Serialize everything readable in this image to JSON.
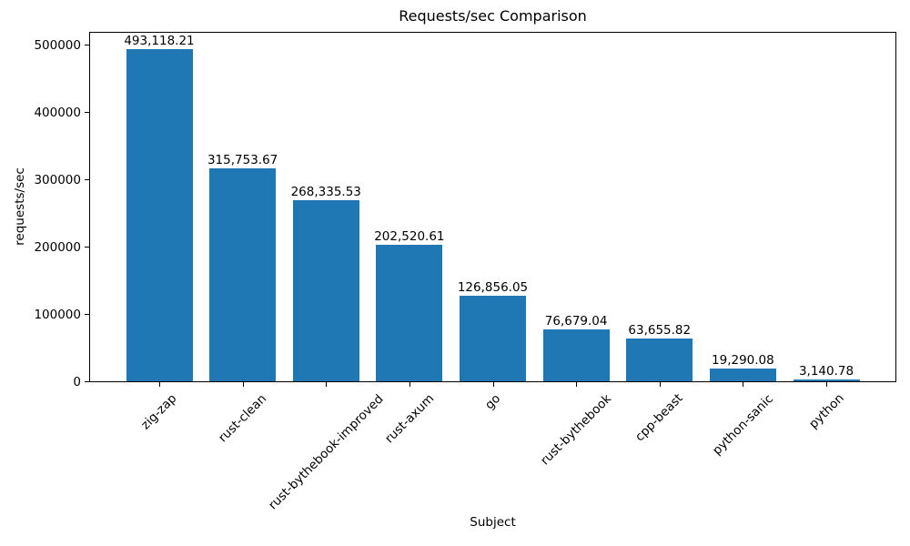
{
  "chart_data": {
    "type": "bar",
    "title": "Requests/sec Comparison",
    "xlabel": "Subject",
    "ylabel": "requests/sec",
    "categories": [
      "zig-zap",
      "rust-clean",
      "rust-bythebook-improved",
      "rust-axum",
      "go",
      "rust-bythebook",
      "cpp-beast",
      "python-sanic",
      "python"
    ],
    "values": [
      493118.21,
      315753.67,
      268335.53,
      202520.61,
      126856.05,
      76679.04,
      63655.82,
      19290.08,
      3140.78
    ],
    "value_labels": [
      "493,118.21",
      "315,753.67",
      "268,335.53",
      "202,520.61",
      "126,856.05",
      "76,679.04",
      "63,655.82",
      "19,290.08",
      "3,140.78"
    ],
    "y_ticks": [
      0,
      100000,
      200000,
      300000,
      400000,
      500000
    ],
    "ylim": [
      0,
      520000
    ],
    "bar_color": "#1f77b4",
    "text_color": "#000000",
    "grid": false,
    "legend_position": "none",
    "x_tick_rotation_deg": 45
  }
}
